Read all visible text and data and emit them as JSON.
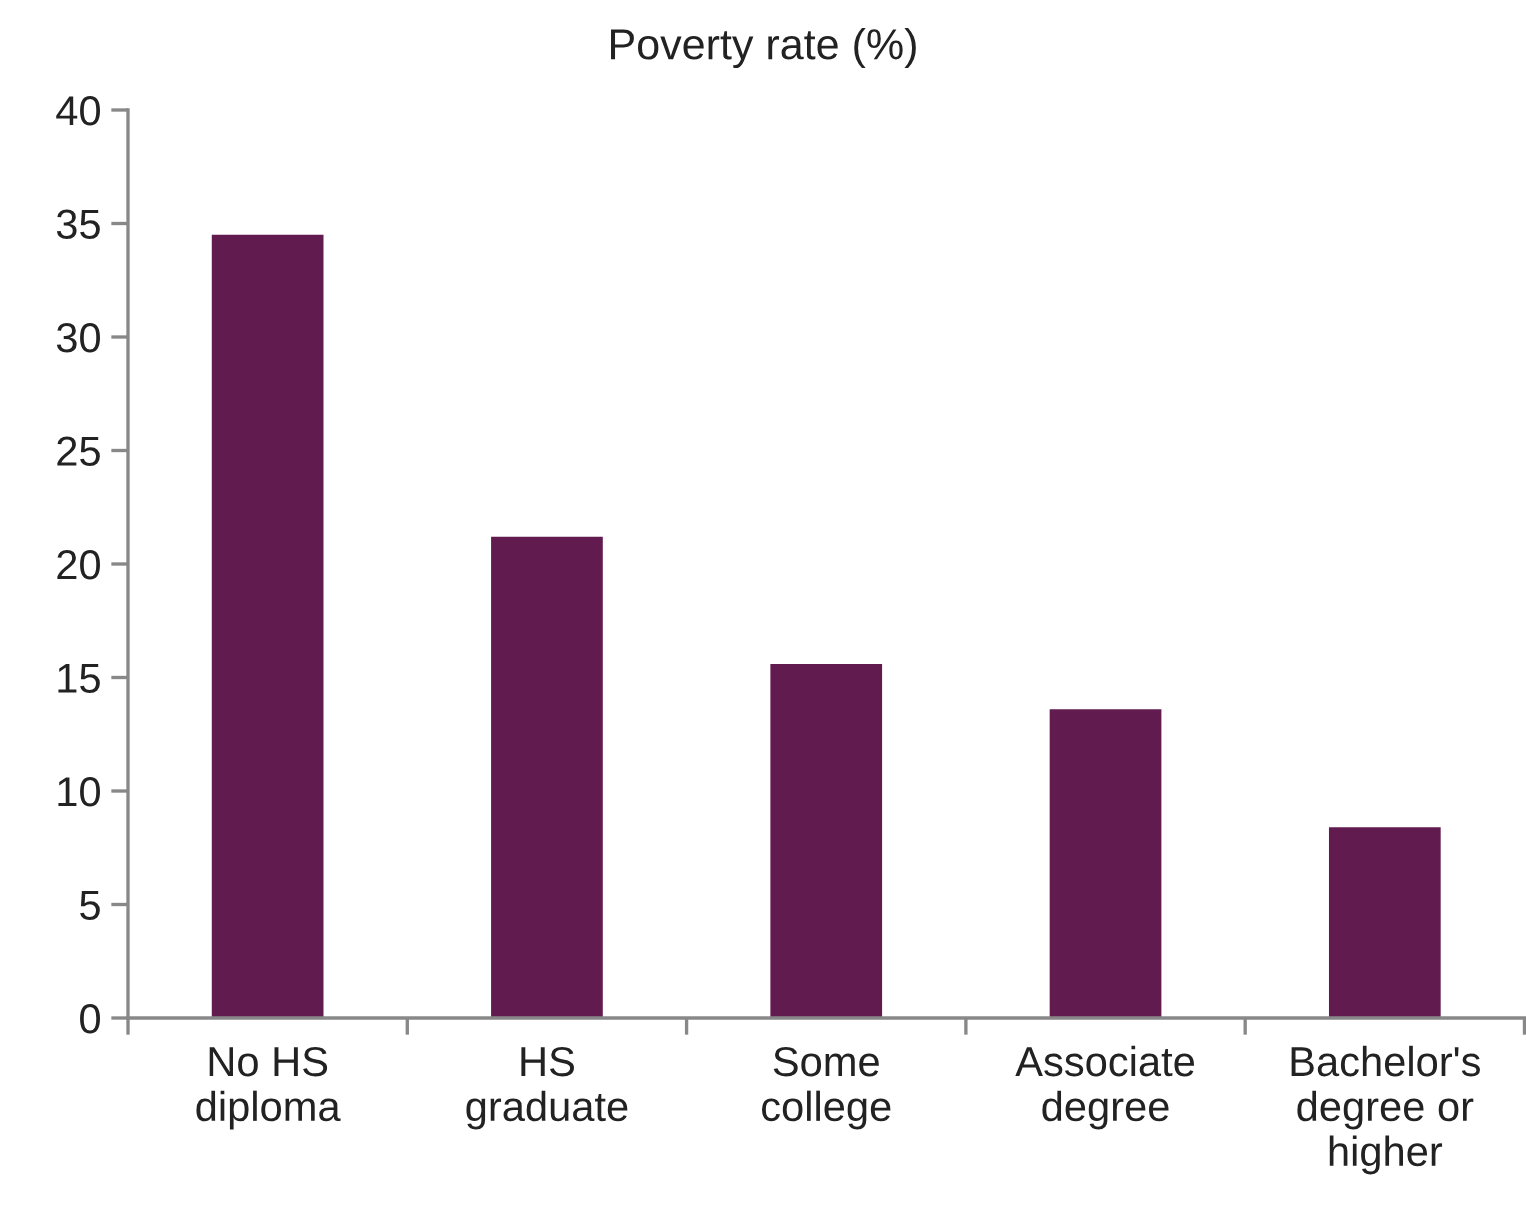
{
  "chart_data": {
    "type": "bar",
    "title": "Poverty rate (%)",
    "categories": [
      "No HS\ndiploma",
      "HS\ngraduate",
      "Some\ncollege",
      "Associate\ndegree",
      "Bachelor's\ndegree or\nhigher"
    ],
    "values": [
      34.5,
      21.2,
      15.6,
      13.6,
      8.4
    ],
    "color": "#621b4f",
    "ylim": [
      0,
      40
    ],
    "yticks": [
      0,
      5,
      10,
      15,
      20,
      25,
      30,
      35,
      40
    ],
    "grid": false,
    "legend": false
  }
}
